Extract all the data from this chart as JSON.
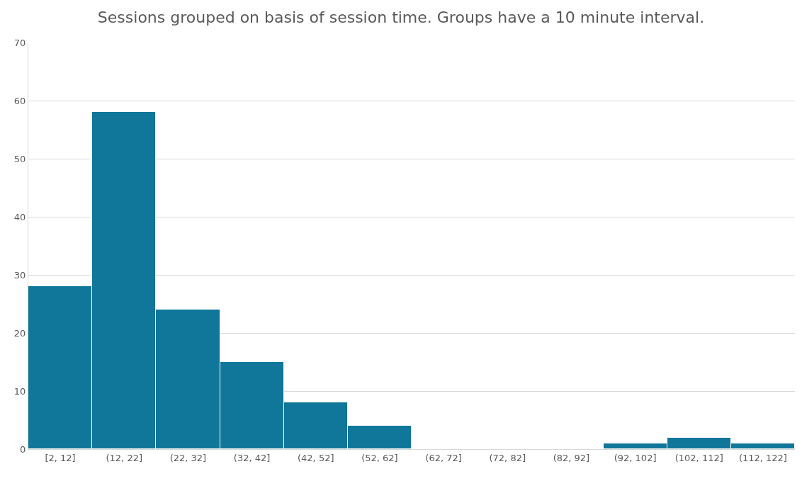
{
  "chart_data": {
    "type": "bar",
    "title": "Sessions grouped on basis of session time. Groups have a 10 minute interval.",
    "categories": [
      "[2, 12]",
      "(12, 22]",
      "(22, 32]",
      "(32, 42]",
      "(42, 52]",
      "(52, 62]",
      "(62, 72]",
      "(72, 82]",
      "(82, 92]",
      "(92, 102]",
      "(102, 112]",
      "(112, 122]"
    ],
    "values": [
      28,
      58,
      24,
      15,
      8,
      4,
      0,
      0,
      0,
      1,
      2,
      1
    ],
    "color": "#10769a",
    "ylim": [
      0,
      70
    ],
    "yticks": [
      0,
      10,
      20,
      30,
      40,
      50,
      60,
      70
    ],
    "grid": "y",
    "legend": false
  }
}
